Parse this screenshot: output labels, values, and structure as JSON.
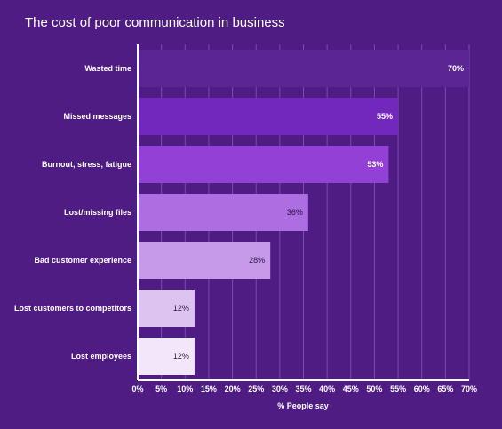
{
  "chart_data": {
    "type": "bar",
    "orientation": "horizontal",
    "title": "The cost of poor communication in business",
    "xlabel": "% People say",
    "ylabel": "",
    "categories": [
      "Wasted time",
      "Missed messages",
      "Burnout, stress, fatigue",
      "Lost/missing files",
      "Bad customer experience",
      "Lost customers to competitors",
      "Lost employees"
    ],
    "values": [
      70,
      55,
      53,
      36,
      28,
      12,
      12
    ],
    "value_labels": [
      "70%",
      "55%",
      "53%",
      "36%",
      "28%",
      "12%",
      "12%"
    ],
    "xlim": [
      0,
      70
    ],
    "xticks": [
      "0%",
      "5%",
      "10%",
      "15%",
      "20%",
      "25%",
      "30%",
      "35%",
      "40%",
      "45%",
      "50%",
      "55%",
      "60%",
      "65%",
      "70%"
    ],
    "grid": true,
    "legend": "none",
    "colors": {
      "background": "#4e1c82",
      "gridline": "#7a4bb0",
      "axis": "#ffffff",
      "bars": [
        "#5b2594",
        "#7227bd",
        "#9240d6",
        "#ac6ee0",
        "#c69ae9",
        "#dcc3f0",
        "#f2e7fa"
      ],
      "label_light": "#ffffff",
      "label_dark": "#2a1040"
    }
  }
}
